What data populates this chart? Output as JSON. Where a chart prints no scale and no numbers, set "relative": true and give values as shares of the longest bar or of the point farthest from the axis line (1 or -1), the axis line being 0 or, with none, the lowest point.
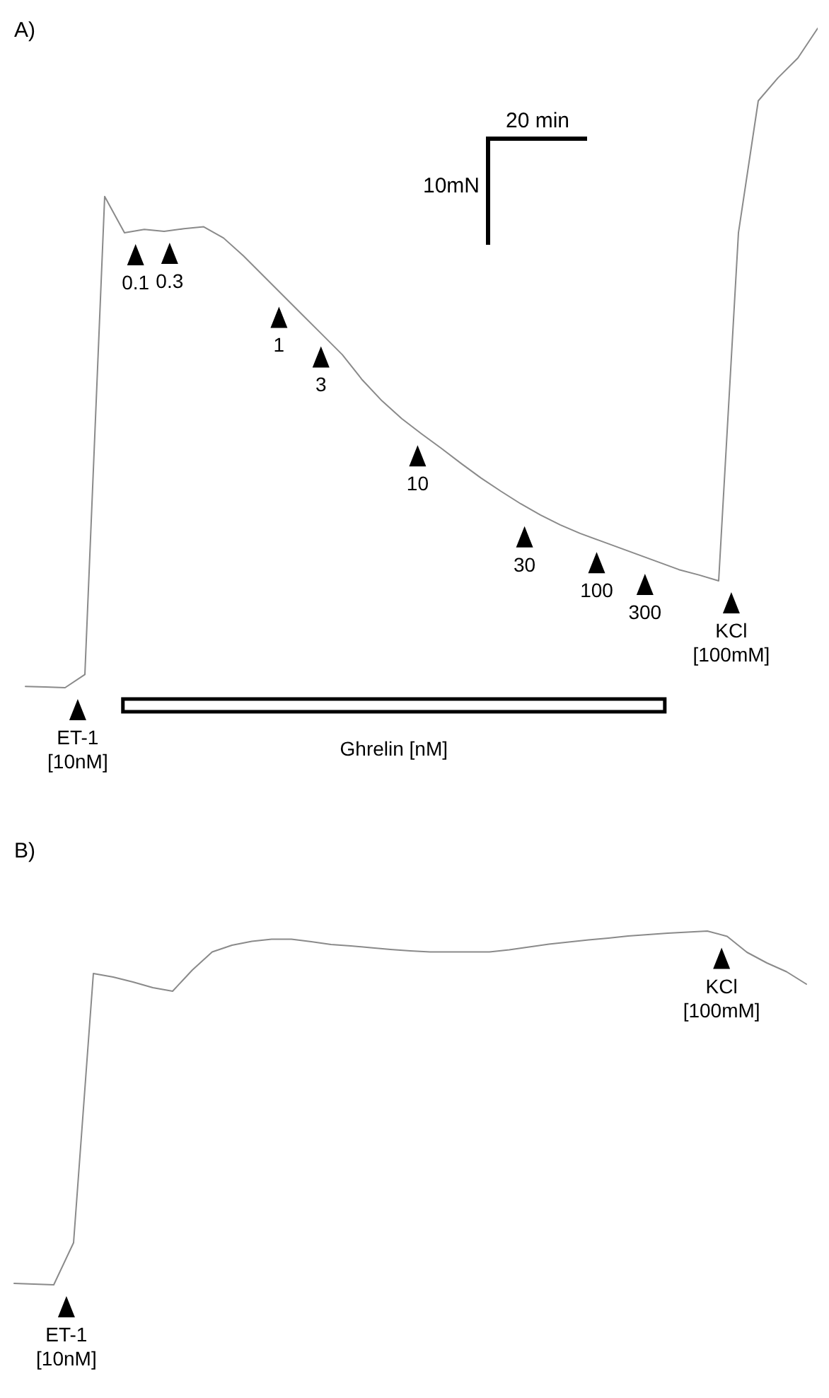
{
  "chart_data": [
    {
      "type": "line",
      "title": "A)",
      "relative": true,
      "line_style": "solid",
      "categories": [
        null,
        null,
        null,
        null,
        null,
        null,
        null,
        null,
        null,
        null,
        null,
        null,
        null,
        null,
        null,
        null,
        null,
        null,
        null,
        null,
        null,
        null,
        null,
        null,
        null,
        null,
        null,
        null,
        null,
        null,
        null,
        null,
        null,
        null,
        null,
        null,
        null,
        null,
        null,
        null,
        null
      ],
      "series": [
        {
          "color": "#8a8a8a",
          "values": [
            0.002,
            0.001,
            0,
            0.02,
            0.745,
            0.69,
            0.695,
            0.692,
            0.696,
            0.699,
            0.682,
            0.655,
            0.625,
            0.595,
            0.565,
            0.535,
            0.505,
            0.467,
            0.435,
            0.408,
            0.385,
            0.363,
            0.34,
            0.318,
            0.298,
            0.279,
            0.262,
            0.247,
            0.234,
            0.223,
            0.212,
            0.201,
            0.19,
            0.179,
            0.171,
            0.162,
            0.69,
            0.89,
            0.925,
            0.955,
            1
          ]
        }
      ],
      "annotations": [
        "20 min",
        "10mN",
        "ET-1\n[10nM]",
        "0.1",
        "0.3",
        "1",
        "3",
        "10",
        "30",
        "100",
        "300",
        "KCl\n[100mM]",
        "Ghrelin [nM]"
      ]
    },
    {
      "type": "line",
      "title": "B)",
      "relative": true,
      "line_style": "solid",
      "categories": [
        null,
        null,
        null,
        null,
        null,
        null,
        null,
        null,
        null,
        null,
        null,
        null,
        null,
        null,
        null,
        null,
        null,
        null,
        null,
        null,
        null,
        null,
        null,
        null,
        null,
        null,
        null,
        null,
        null,
        null,
        null,
        null,
        null,
        null,
        null,
        null,
        null,
        null,
        null,
        null,
        null
      ],
      "series": [
        {
          "color": "#8a8a8a",
          "values": [
            0.004,
            0.002,
            0,
            0.119,
            0.88,
            0.87,
            0.856,
            0.84,
            0.83,
            0.89,
            0.941,
            0.96,
            0.971,
            0.977,
            0.977,
            0.97,
            0.962,
            0.958,
            0.953,
            0.948,
            0.944,
            0.941,
            0.941,
            0.941,
            0.941,
            0.947,
            0.955,
            0.963,
            0.969,
            0.975,
            0.98,
            0.986,
            0.99,
            0.994,
            0.997,
            1,
            0.985,
            0.94,
            0.91,
            0.885,
            0.85
          ]
        }
      ],
      "annotations": [
        "ET-1\n[10nM]",
        "KCl\n[100mM]"
      ]
    }
  ]
}
